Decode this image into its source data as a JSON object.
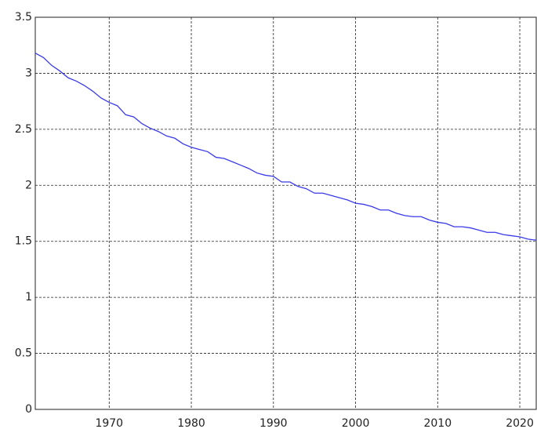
{
  "chart_data": {
    "type": "line",
    "color": "#3a3ae8",
    "grid": true,
    "x": [
      1961,
      1962,
      1963,
      1964,
      1965,
      1966,
      1967,
      1968,
      1969,
      1970,
      1971,
      1972,
      1973,
      1974,
      1975,
      1976,
      1977,
      1978,
      1979,
      1980,
      1981,
      1982,
      1983,
      1984,
      1985,
      1986,
      1987,
      1988,
      1989,
      1990,
      1991,
      1992,
      1993,
      1994,
      1995,
      1996,
      1997,
      1998,
      1999,
      2000,
      2001,
      2002,
      2003,
      2004,
      2005,
      2006,
      2007,
      2008,
      2009,
      2010,
      2011,
      2012,
      2013,
      2014,
      2015,
      2016,
      2017,
      2018,
      2019,
      2020,
      2021,
      2022
    ],
    "values": [
      3.18,
      3.14,
      3.07,
      3.02,
      2.96,
      2.93,
      2.89,
      2.84,
      2.78,
      2.74,
      2.71,
      2.63,
      2.61,
      2.55,
      2.51,
      2.48,
      2.44,
      2.42,
      2.37,
      2.34,
      2.32,
      2.3,
      2.25,
      2.24,
      2.21,
      2.18,
      2.15,
      2.11,
      2.09,
      2.08,
      2.03,
      2.03,
      1.99,
      1.97,
      1.93,
      1.93,
      1.91,
      1.89,
      1.87,
      1.84,
      1.83,
      1.81,
      1.78,
      1.78,
      1.75,
      1.73,
      1.72,
      1.72,
      1.69,
      1.67,
      1.66,
      1.63,
      1.63,
      1.62,
      1.6,
      1.58,
      1.58,
      1.56,
      1.55,
      1.54,
      1.52,
      1.51
    ],
    "xlim": [
      1961,
      2022
    ],
    "xticks": [
      1970,
      1980,
      1990,
      2000,
      2010,
      2020
    ],
    "ylim": [
      0,
      3.5
    ],
    "yticks": [
      0,
      0.5,
      1,
      1.5,
      2,
      2.5,
      3,
      3.5
    ]
  }
}
